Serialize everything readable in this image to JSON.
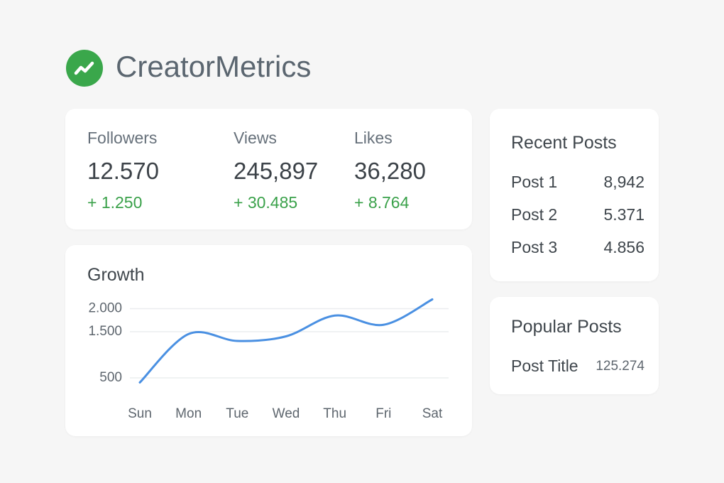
{
  "header": {
    "title": "CreatorMetrics"
  },
  "stats": [
    {
      "label": "Followers",
      "value": "12.570",
      "change": "+ 1.250"
    },
    {
      "label": "Views",
      "value": "245,897",
      "change": "+ 30.485"
    },
    {
      "label": "Likes",
      "value": "36,280",
      "change": "+ 8.764"
    }
  ],
  "chart_data": {
    "type": "line",
    "title": "Growth",
    "categories": [
      "Sun",
      "Mon",
      "Tue",
      "Wed",
      "Thu",
      "Fri",
      "Sat"
    ],
    "values": [
      400,
      1450,
      1300,
      1400,
      1850,
      1650,
      2200
    ],
    "color": "#4a90e2",
    "ylim": [
      300,
      2300
    ],
    "yticks": [
      {
        "value": 2000,
        "label": "2.000"
      },
      {
        "value": 1500,
        "label": "1.500"
      },
      500
    ],
    "grid": true
  },
  "recent_posts": {
    "title": "Recent Posts",
    "rows": [
      [
        "Post 1",
        "8,942"
      ],
      [
        "Post 2",
        "5.371"
      ],
      [
        "Post 3",
        "4.856"
      ]
    ]
  },
  "popular_posts": {
    "title": "Popular Posts",
    "rows": [
      [
        "Post Title",
        "125.274"
      ]
    ]
  }
}
